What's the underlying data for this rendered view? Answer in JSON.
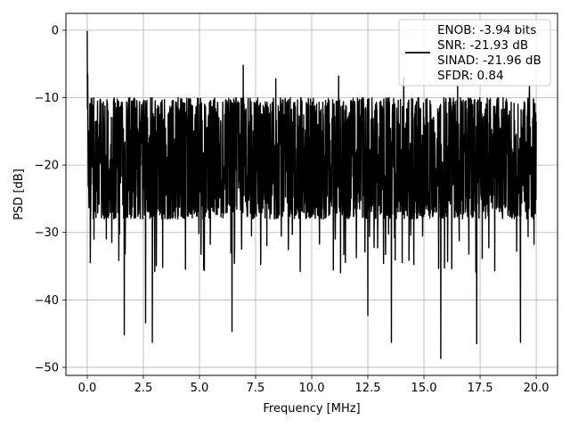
{
  "chart_data": {
    "type": "line",
    "title": "",
    "xlabel": "Frequency [MHz]",
    "ylabel": "PSD [dB]",
    "xlim": [
      -0.95,
      20.95
    ],
    "ylim": [
      -51.2,
      2.5
    ],
    "xticks": [
      0.0,
      2.5,
      5.0,
      7.5,
      10.0,
      12.5,
      15.0,
      17.5,
      20.0
    ],
    "xtick_labels": [
      "0.0",
      "2.5",
      "5.0",
      "7.5",
      "10.0",
      "12.5",
      "15.0",
      "17.5",
      "20.0"
    ],
    "yticks": [
      0,
      -10,
      -20,
      -30,
      -40,
      -50
    ],
    "ytick_labels": [
      "0",
      "−10",
      "−20",
      "−30",
      "−40",
      "−50"
    ],
    "grid": true,
    "legend_position": "top-right",
    "legend_entries": [
      "ENOB: -3.94 bits",
      "SNR: -21.93 dB",
      "SINAD: -21.96 dB",
      "SFDR: 0.84"
    ],
    "series": [
      {
        "color": "#000000",
        "x_start": 0.0,
        "x_end": 20.0,
        "peaks": [
          {
            "x": 0.0,
            "y": -0.1
          },
          {
            "x": 0.02,
            "y": -6.5
          },
          {
            "x": 1.15,
            "y": -13.0
          },
          {
            "x": 4.6,
            "y": -10.2
          },
          {
            "x": 6.95,
            "y": -5.2
          },
          {
            "x": 8.4,
            "y": -7.2
          },
          {
            "x": 11.2,
            "y": -6.8
          },
          {
            "x": 14.1,
            "y": -7.0
          },
          {
            "x": 16.5,
            "y": -8.3
          },
          {
            "x": 19.7,
            "y": -8.2
          }
        ],
        "troughs": [
          {
            "x": 0.3,
            "y": -31.0
          },
          {
            "x": 1.65,
            "y": -45.2
          },
          {
            "x": 2.6,
            "y": -43.4
          },
          {
            "x": 2.9,
            "y": -46.3
          },
          {
            "x": 6.45,
            "y": -44.7
          },
          {
            "x": 12.5,
            "y": -42.3
          },
          {
            "x": 13.55,
            "y": -46.3
          },
          {
            "x": 15.75,
            "y": -48.7
          },
          {
            "x": 17.35,
            "y": -46.5
          },
          {
            "x": 19.3,
            "y": -46.3
          }
        ],
        "typical_band": [
          -28,
          -10
        ]
      }
    ]
  }
}
